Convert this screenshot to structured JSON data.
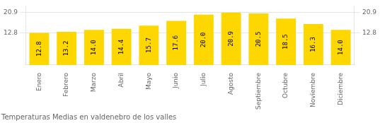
{
  "chart_data": {
    "type": "bar",
    "title": "Temperaturas Medias en valdenebro de los valles",
    "categories": [
      "Enero",
      "Febrero",
      "Marzo",
      "Abril",
      "Mayo",
      "Junio",
      "Julio",
      "Agosto",
      "Septiembre",
      "Octubre",
      "Noviembre",
      "Diciembre"
    ],
    "values": [
      12.8,
      13.2,
      14.0,
      14.4,
      15.7,
      17.6,
      20.0,
      20.9,
      20.5,
      18.5,
      16.3,
      14.0
    ],
    "value_labels": [
      "12.8",
      "13.2",
      "14.0",
      "14.4",
      "15.7",
      "17.6",
      "20.0",
      "20.9",
      "20.5",
      "18.5",
      "16.3",
      "14.0"
    ],
    "data_labels": true,
    "color": "#FFD700",
    "ylim": [
      0,
      23.5
    ],
    "yticks": [
      12.8,
      20.9
    ],
    "y2lim": [
      0,
      23.5
    ],
    "y2ticks": [
      12.8,
      20.9
    ],
    "grid": true
  }
}
